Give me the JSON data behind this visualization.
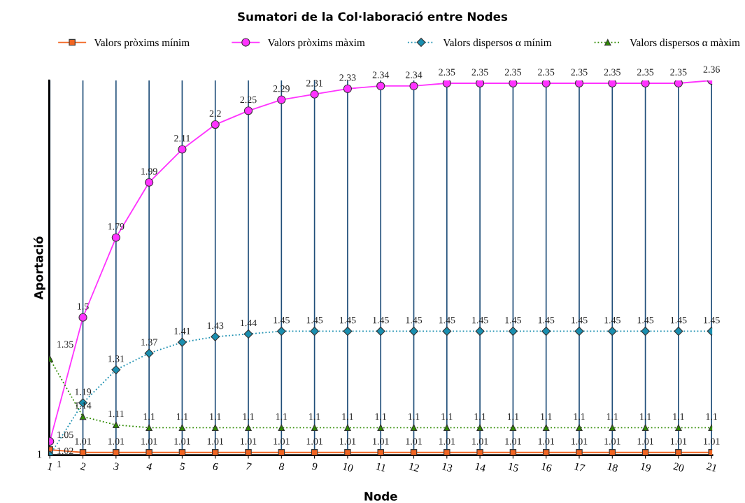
{
  "chart_data": {
    "type": "line",
    "title": "Sumatori de la Col·laboració entre Nodes",
    "xlabel": "Node",
    "ylabel": "Aportació",
    "categories": [
      "1",
      "2",
      "3",
      "4",
      "5",
      "6",
      "7",
      "8",
      "9",
      "10",
      "11",
      "12",
      "13",
      "14",
      "15",
      "16",
      "17",
      "18",
      "19",
      "20",
      "21"
    ],
    "tick_labels": "x",
    "grid": "x",
    "legend": "top",
    "data_labels": true,
    "annotations": [
      {
        "text": "1",
        "x": "1",
        "y": 1
      }
    ],
    "series": [
      {
        "name": "Valors pròxims mínim",
        "color": "#f26522",
        "marker": "square",
        "line_style": "solid",
        "values": [
          1.02,
          1.01,
          1.01,
          1.01,
          1.01,
          1.01,
          1.01,
          1.01,
          1.01,
          1.01,
          1.01,
          1.01,
          1.01,
          1.01,
          1.01,
          1.01,
          1.01,
          1.01,
          1.01,
          1.01,
          1.01
        ]
      },
      {
        "name": "Valors pròxims màxim",
        "color": "#ff33ff",
        "marker": "circle",
        "line_style": "solid",
        "values": [
          1.05,
          1.5,
          1.79,
          1.99,
          2.11,
          2.2,
          2.25,
          2.29,
          2.31,
          2.33,
          2.34,
          2.34,
          2.35,
          2.35,
          2.35,
          2.35,
          2.35,
          2.35,
          2.35,
          2.35,
          2.36
        ]
      },
      {
        "name": "Valors dispersos α mínim",
        "color": "#1a8fb0",
        "marker": "diamond",
        "line_style": "dotted",
        "values": [
          1,
          1.19,
          1.31,
          1.37,
          1.41,
          1.43,
          1.44,
          1.45,
          1.45,
          1.45,
          1.45,
          1.45,
          1.45,
          1.45,
          1.45,
          1.45,
          1.45,
          1.45,
          1.45,
          1.45,
          1.45
        ]
      },
      {
        "name": "Valors dispersos α màxim",
        "color": "#2e8b00",
        "marker": "triangle",
        "line_style": "dotted",
        "values": [
          1.35,
          1.14,
          1.11,
          1.1,
          1.1,
          1.1,
          1.1,
          1.1,
          1.1,
          1.1,
          1.1,
          1.1,
          1.1,
          1.1,
          1.1,
          1.1,
          1.1,
          1.1,
          1.1,
          1.1,
          1.1
        ]
      }
    ]
  }
}
